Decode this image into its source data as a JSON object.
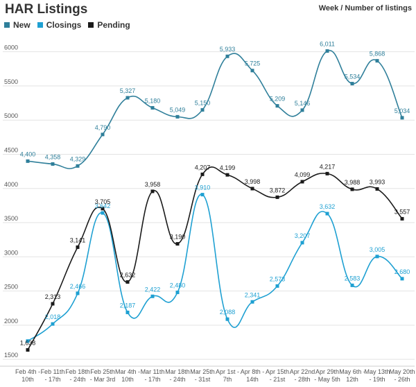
{
  "chart_data": {
    "type": "line",
    "title": "HAR Listings",
    "subtitle": "Week / Number of listings",
    "categories": [
      "Feb 4th - 10th",
      "Feb 11th - 17th",
      "Feb 18th - 24th",
      "Feb 25th - Mar 3rd",
      "Mar 4th - 10th",
      "Mar 11th - 17th",
      "Mar 18th - 24th",
      "Mar 25th - 31st",
      "Apr 1st - 7th",
      "Apr 8th - 14th",
      "Apr 15th - 21st",
      "Apr 22nd - 28th",
      "Apr 29th - May 5th",
      "May 6th - 12th",
      "May 13th - 19th",
      "May 20th - 26th"
    ],
    "category_lines": [
      [
        "Feb 4th -",
        "10th"
      ],
      [
        "Feb 11th",
        "- 17th"
      ],
      [
        "Feb 18th",
        "- 24th"
      ],
      [
        "Feb 25th",
        "- Mar 3rd"
      ],
      [
        "Mar 4th -",
        "10th"
      ],
      [
        "Mar 11th",
        "- 17th"
      ],
      [
        "Mar 18th",
        "- 24th"
      ],
      [
        "Mar 25th",
        "- 31st"
      ],
      [
        "Apr 1st -",
        "7th"
      ],
      [
        "Apr 8th -",
        "14th"
      ],
      [
        "Apr 15th",
        "- 21st"
      ],
      [
        "Apr 22nd",
        "- 28th"
      ],
      [
        "Apr 29th",
        "- May 5th"
      ],
      [
        "May 6th -",
        "12th"
      ],
      [
        "May 13th",
        "- 19th"
      ],
      [
        "May 20th",
        "- 26th"
      ]
    ],
    "series": [
      {
        "name": "New",
        "color": "#2f7f9a",
        "values": [
          4400,
          4358,
          4329,
          4790,
          5327,
          5180,
          5049,
          5150,
          5933,
          5725,
          5209,
          5146,
          6011,
          5534,
          5868,
          5034
        ],
        "labels": [
          "4,400",
          "4,358",
          "4,329",
          "4,790",
          "5,327",
          "5,180",
          "5,049",
          "5,150",
          "5,933",
          "5,725",
          "5,209",
          "5,146",
          "6,011",
          "5,534",
          "5,868",
          "5,034"
        ]
      },
      {
        "name": "Closings",
        "color": "#1ea0d2",
        "values": [
          1768,
          2018,
          2466,
          3642,
          2187,
          2422,
          2480,
          3910,
          2088,
          2341,
          2573,
          3207,
          3632,
          2583,
          3005,
          2680
        ],
        "labels": [
          "",
          "2,018",
          "2,466",
          "3,642",
          "2,187",
          "2,422",
          "2,480",
          "3,910",
          "2,088",
          "2,341",
          "2,573",
          "3,207",
          "3,632",
          "2,583",
          "3,005",
          "2,680"
        ]
      },
      {
        "name": "Pending",
        "color": "#1a1a1a",
        "values": [
          1638,
          2313,
          3141,
          3705,
          2632,
          3958,
          3190,
          4207,
          4199,
          3998,
          3872,
          4099,
          4217,
          3988,
          3993,
          3557
        ],
        "labels": [
          "1,638",
          "2,313",
          "3,141",
          "3,705",
          "2,632",
          "3,958",
          "3,190",
          "4,207",
          "4,199",
          "3,998",
          "3,872",
          "4,099",
          "4,217",
          "3,988",
          "3,993",
          "3,557"
        ]
      }
    ],
    "y_ticks": [
      1500,
      2000,
      2500,
      3000,
      3500,
      4000,
      4500,
      5000,
      5500,
      6000
    ],
    "ylim": [
      1400,
      6250
    ],
    "grid": true,
    "legend_position": "top-left"
  }
}
